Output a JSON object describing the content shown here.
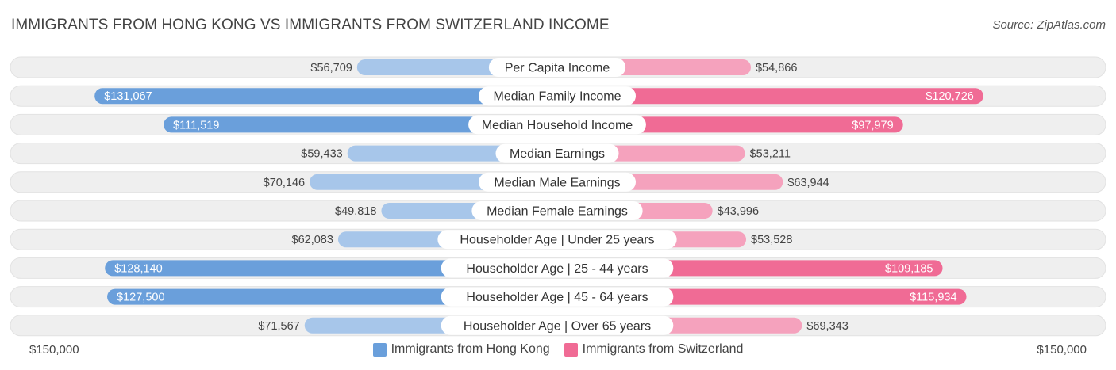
{
  "title": "IMMIGRANTS FROM HONG KONG VS IMMIGRANTS FROM SWITZERLAND INCOME",
  "source": "Source: ZipAtlas.com",
  "colors": {
    "left_strong": "#6a9fdb",
    "left_light": "#a7c6ea",
    "right_strong": "#f06b95",
    "right_light": "#f5a2bd",
    "track": "#efefef"
  },
  "chart_data": {
    "type": "bar",
    "orientation": "horizontal-diverging",
    "xlim": [
      0,
      150000
    ],
    "axis_left_label": "$150,000",
    "axis_right_label": "$150,000",
    "categories": [
      "Per Capita Income",
      "Median Family Income",
      "Median Household Income",
      "Median Earnings",
      "Median Male Earnings",
      "Median Female Earnings",
      "Householder Age | Under 25 years",
      "Householder Age | 25 - 44 years",
      "Householder Age | 45 - 64 years",
      "Householder Age | Over 65 years"
    ],
    "series": [
      {
        "name": "Immigrants from Hong Kong",
        "values": [
          56709,
          131067,
          111519,
          59433,
          70146,
          49818,
          62083,
          128140,
          127500,
          71567
        ],
        "labels": [
          "$56,709",
          "$131,067",
          "$111,519",
          "$59,433",
          "$70,146",
          "$49,818",
          "$62,083",
          "$128,140",
          "$127,500",
          "$71,567"
        ]
      },
      {
        "name": "Immigrants from Switzerland",
        "values": [
          54866,
          120726,
          97979,
          53211,
          63944,
          43996,
          53528,
          109185,
          115934,
          69343
        ],
        "labels": [
          "$54,866",
          "$120,726",
          "$97,979",
          "$53,211",
          "$63,944",
          "$43,996",
          "$53,528",
          "$109,185",
          "$115,934",
          "$69,343"
        ]
      }
    ],
    "legend_position": "bottom-center"
  }
}
